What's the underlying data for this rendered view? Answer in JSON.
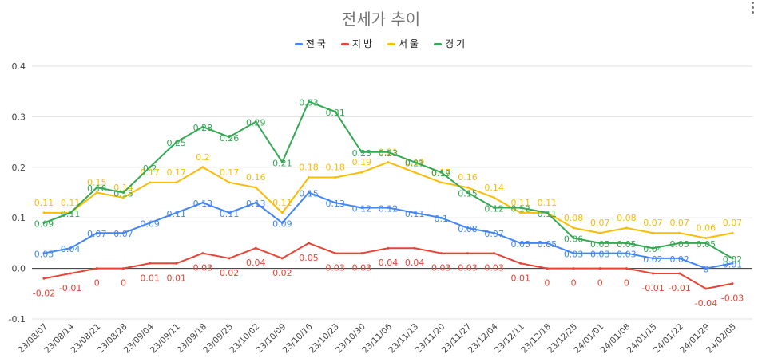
{
  "chart_data": {
    "type": "line",
    "title": "전세가 추이",
    "xlabel": "",
    "ylabel": "",
    "ylim": [
      -0.1,
      0.4
    ],
    "yticks": [
      "0.4",
      "0.3",
      "0.2",
      "0.1",
      "0.0",
      "-0.1"
    ],
    "legend_position": "top",
    "grid": true,
    "categories": [
      "23/08/07",
      "23/08/14",
      "23/08/21",
      "23/08/28",
      "23/09/04",
      "23/09/11",
      "23/09/18",
      "23/09/25",
      "23/10/02",
      "23/10/09",
      "23/10/16",
      "23/10/23",
      "23/10/30",
      "23/11/06",
      "23/11/13",
      "23/11/20",
      "23/11/27",
      "23/12/04",
      "23/12/11",
      "23/12/18",
      "23/12/25",
      "24/01/01",
      "24/01/08",
      "24/01/15",
      "24/01/22",
      "24/01/29",
      "24/02/05"
    ],
    "series": [
      {
        "name": "전국",
        "color": "#4285f4",
        "values": [
          0.03,
          0.04,
          0.07,
          0.07,
          0.09,
          0.11,
          0.13,
          0.11,
          0.13,
          0.09,
          0.15,
          0.13,
          0.12,
          0.12,
          0.11,
          0.1,
          0.08,
          0.07,
          0.05,
          0.05,
          0.03,
          0.03,
          0.03,
          0.02,
          0.02,
          0,
          0.01
        ],
        "labels": [
          "0.03",
          "0.04",
          "0.07",
          "0.07",
          "0.09",
          "0.11",
          "0.13",
          "0.11",
          "0.13",
          "0.09",
          "0.15",
          "0.13",
          "0.12",
          "0.12",
          "0.11",
          "0.1",
          "0.08",
          "0.07",
          "0.05",
          "0.05",
          "0.03",
          "0.03",
          "0.03",
          "0.02",
          "0.02",
          "0",
          "0.01"
        ]
      },
      {
        "name": "지방",
        "color": "#ea4335",
        "values": [
          -0.02,
          -0.01,
          0,
          0,
          0.01,
          0.01,
          0.03,
          0.02,
          0.04,
          0.02,
          0.05,
          0.03,
          0.03,
          0.04,
          0.04,
          0.03,
          0.03,
          0.03,
          0.01,
          0,
          0,
          0,
          0,
          -0.01,
          -0.01,
          -0.04,
          -0.03
        ],
        "labels": [
          "-0.02",
          "-0.01",
          "0",
          "0",
          "0.01",
          "0.01",
          "0.03",
          "0.02",
          "0.04",
          "0.02",
          "0.05",
          "0.03",
          "0.03",
          "0.04",
          "0.04",
          "0.03",
          "0.03",
          "0.03",
          "0.01",
          "0",
          "0",
          "0",
          "0",
          "-0.01",
          "-0.01",
          "-0.04",
          "-0.03"
        ]
      },
      {
        "name": "서울",
        "color": "#fbbc04",
        "values": [
          0.11,
          0.11,
          0.15,
          0.14,
          0.17,
          0.17,
          0.2,
          0.17,
          0.16,
          0.11,
          0.18,
          0.18,
          0.19,
          0.21,
          0.19,
          0.17,
          0.16,
          0.14,
          0.11,
          0.11,
          0.08,
          0.07,
          0.08,
          0.07,
          0.07,
          0.06,
          0.07
        ],
        "labels": [
          "0.11",
          "0.11",
          "0.15",
          "0.14",
          "0.17",
          "0.17",
          "0.2",
          "0.17",
          "0.16",
          "0.11",
          "0.18",
          "0.18",
          "0.19",
          "0.21",
          "0.19",
          "0.17",
          "0.16",
          "0.14",
          "0.11",
          "0.11",
          "0.08",
          "0.07",
          "0.08",
          "0.07",
          "0.07",
          "0.06",
          "0.07"
        ]
      },
      {
        "name": "경기",
        "color": "#34a853",
        "values": [
          0.09,
          0.11,
          0.16,
          0.15,
          0.2,
          0.25,
          0.28,
          0.26,
          0.29,
          0.21,
          0.33,
          0.31,
          0.23,
          0.23,
          0.21,
          0.19,
          0.15,
          0.12,
          0.12,
          0.11,
          0.06,
          0.05,
          0.05,
          0.04,
          0.05,
          0.05,
          0.02
        ],
        "labels": [
          "0.09",
          "0.11",
          "0.16",
          "0.15",
          "0.2",
          "0.25",
          "0.28",
          "0.26",
          "0.29",
          "0.21",
          "0.33",
          "0.31",
          "0.23",
          "0.23",
          "0.21",
          "0.19",
          "0.15",
          "0.12",
          "0.12",
          "0.11",
          "0.06",
          "0.05",
          "0.05",
          "0.04",
          "0.05",
          "0.05",
          "0.02"
        ]
      }
    ]
  }
}
